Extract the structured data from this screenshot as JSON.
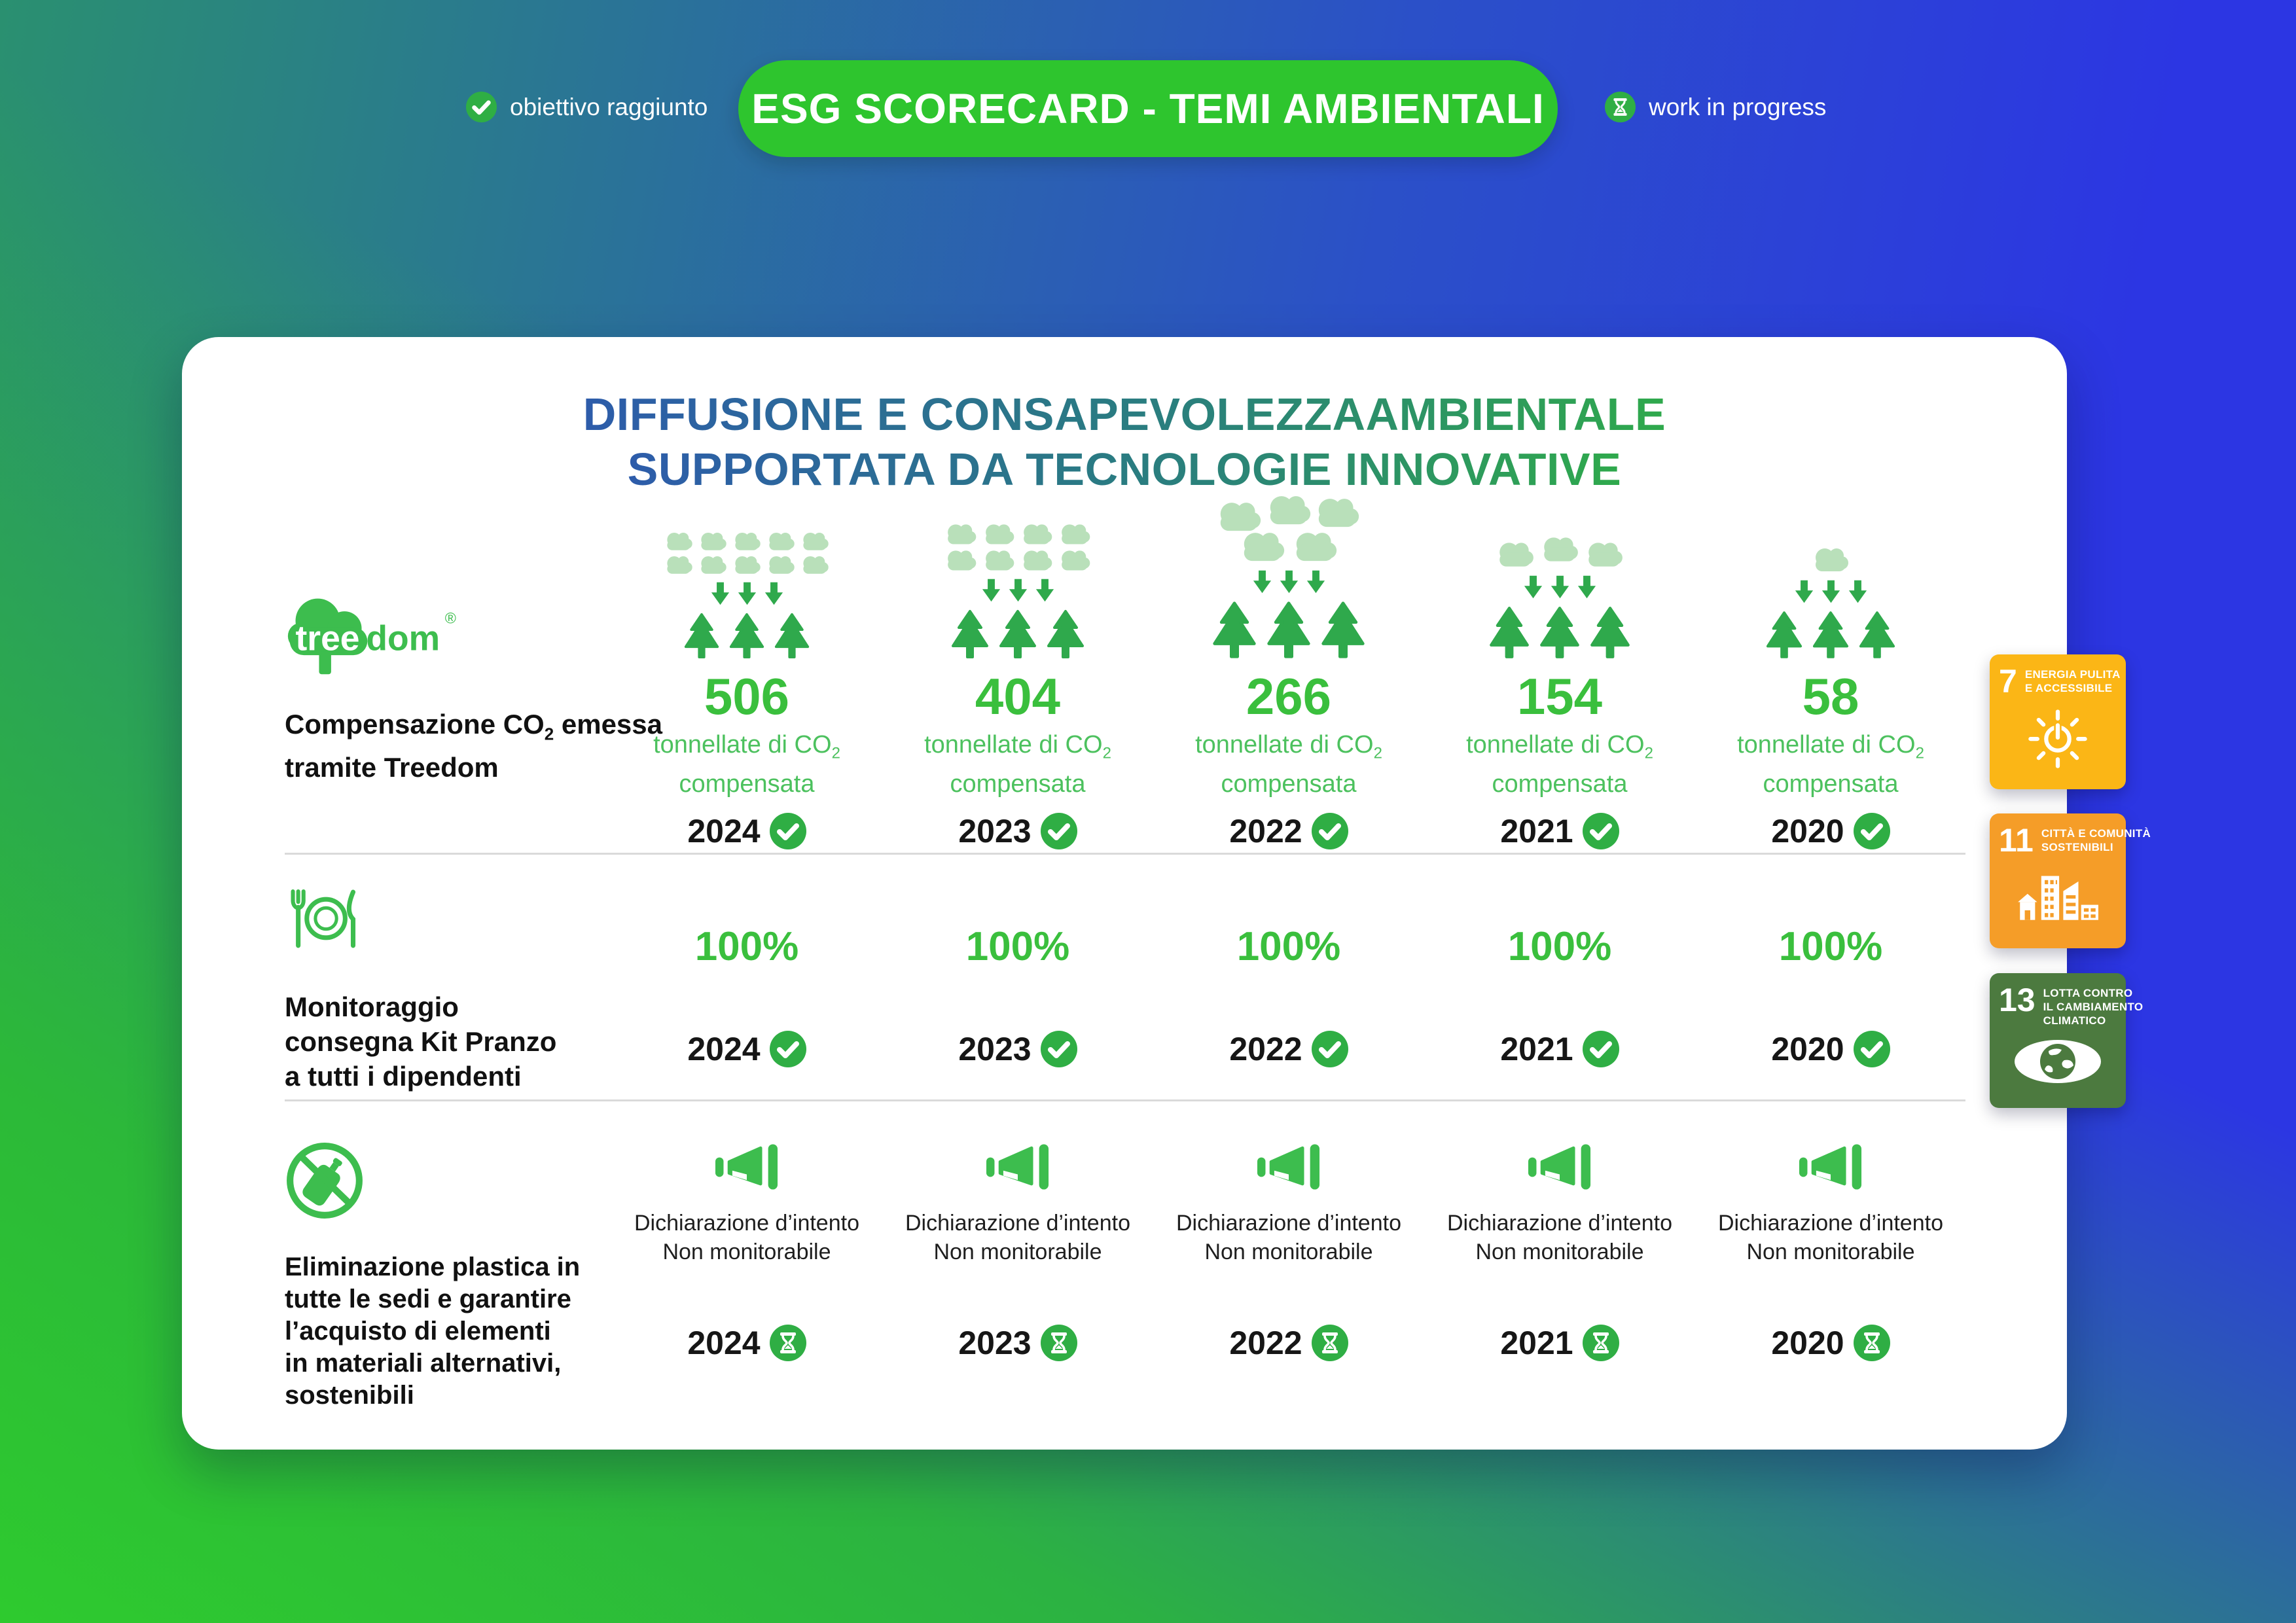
{
  "header": {
    "legend_done_label": "obiettivo raggiunto",
    "banner_title": "ESG SCORECARD - TEMI AMBIENTALI",
    "legend_wip_label": "work in progress"
  },
  "card": {
    "title_line1": "DIFFUSIONE E CONSAPEVOLEZZAAMBIENTALE",
    "title_line2": "SUPPORTATA DA TECNOLOGIE INNOVATIVE"
  },
  "treedom_logo": {
    "part_white": "tree",
    "part_green": "dom",
    "reg_mark": "®"
  },
  "unit_caption": {
    "line1": "tonnellate di CO",
    "sub": "2",
    "line2": "compensata"
  },
  "rows": {
    "co2": {
      "label": {
        "l1a": "Compensazione CO",
        "l1sub": "2",
        "l1b": " emessa",
        "l2": "tramite Treedom"
      },
      "columns": [
        {
          "year": "2024",
          "value": "506",
          "clouds": 10,
          "status": "done"
        },
        {
          "year": "2023",
          "value": "404",
          "clouds": 8,
          "status": "done"
        },
        {
          "year": "2022",
          "value": "266",
          "clouds": 5,
          "status": "done"
        },
        {
          "year": "2021",
          "value": "154",
          "clouds": 3,
          "status": "done"
        },
        {
          "year": "2020",
          "value": "58",
          "clouds": 1,
          "status": "done"
        }
      ]
    },
    "kit": {
      "label_lines": [
        "Monitoraggio",
        "consegna Kit Pranzo",
        "a tutti i dipendenti"
      ],
      "columns": [
        {
          "year": "2024",
          "value": "100%",
          "status": "done"
        },
        {
          "year": "2023",
          "value": "100%",
          "status": "done"
        },
        {
          "year": "2022",
          "value": "100%",
          "status": "done"
        },
        {
          "year": "2021",
          "value": "100%",
          "status": "done"
        },
        {
          "year": "2020",
          "value": "100%",
          "status": "done"
        }
      ]
    },
    "plastica": {
      "label_lines": [
        "Eliminazione plastica in",
        "tutte le sedi e garantire",
        "l’acquisto di elementi",
        "in materiali alternativi,",
        "sostenibili"
      ],
      "note_line1": "Dichiarazione d’intento",
      "note_line2": "Non monitorabile",
      "columns": [
        {
          "year": "2024",
          "status": "wip"
        },
        {
          "year": "2023",
          "status": "wip"
        },
        {
          "year": "2022",
          "status": "wip"
        },
        {
          "year": "2021",
          "status": "wip"
        },
        {
          "year": "2020",
          "status": "wip"
        }
      ]
    }
  },
  "sdg_badges": [
    {
      "number": "7",
      "title_lines": [
        "ENERGIA PULITA",
        "E ACCESSIBILE"
      ],
      "color": "#fbb616",
      "icon": "sun-energy-icon"
    },
    {
      "number": "11",
      "title_lines": [
        "CITTÀ E COMUNITÀ",
        "SOSTENIBILI"
      ],
      "color": "#f59d28",
      "icon": "sustainable-city-icon"
    },
    {
      "number": "13",
      "title_lines": [
        "LOTTA CONTRO",
        "IL CAMBIAMENTO",
        "CLIMATICO"
      ],
      "color": "#4c7a3f",
      "icon": "climate-eye-icon"
    }
  ],
  "colors": {
    "banner_green": "#2ec52e",
    "value_green": "#3abf3d",
    "caption_green": "#4cc15e",
    "badge_green": "#2fae44",
    "cloud_green": "#b9e0ba",
    "tree_green": "#2fa94c",
    "divider_gray": "#dadada",
    "bg_blue": "#2c36e3",
    "bg_green": "#2cc22c"
  }
}
